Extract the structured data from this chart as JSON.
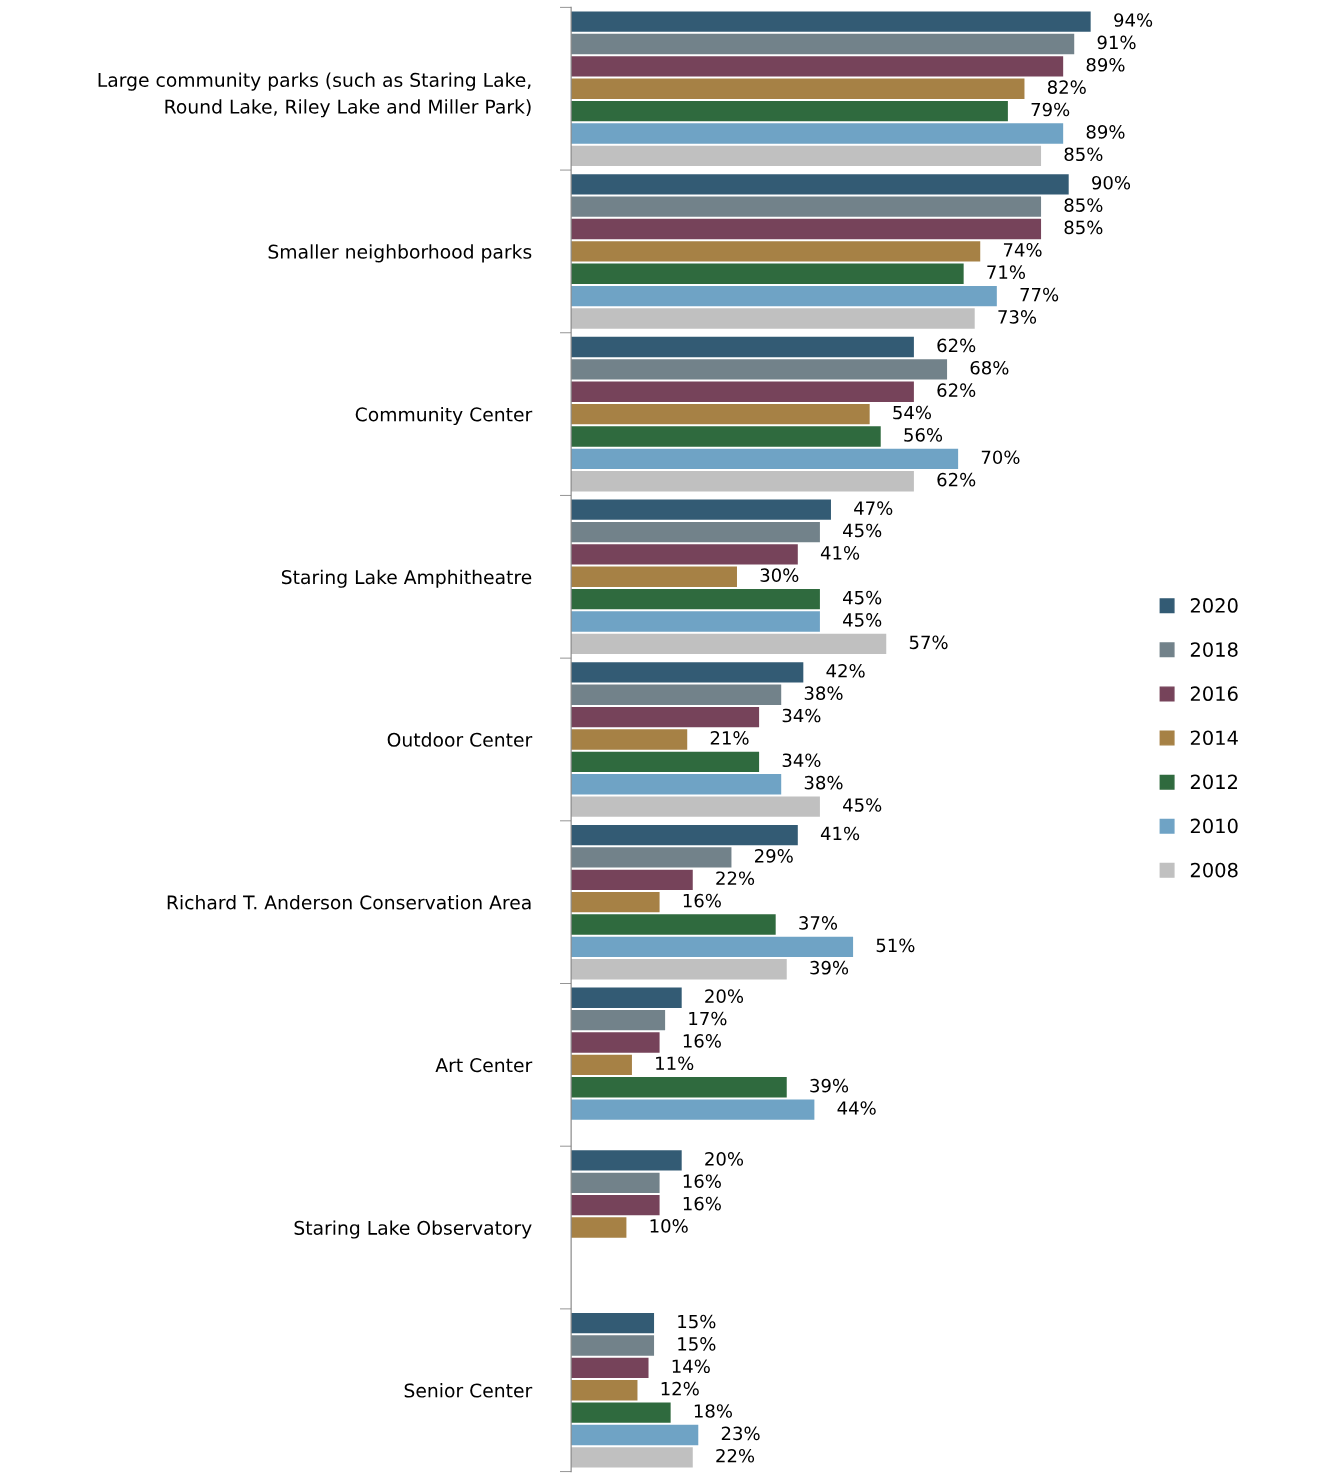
{
  "chart_data": {
    "type": "bar",
    "orientation": "horizontal",
    "categories": [
      "Large community parks (such as Staring Lake,\nRound Lake, Riley Lake and Miller Park)",
      "Smaller neighborhood parks",
      "Community Center",
      "Staring Lake Amphitheatre",
      "Outdoor Center",
      "Richard T. Anderson Conservation Area",
      "Art Center",
      "Staring Lake Observatory",
      "Senior Center"
    ],
    "series": [
      {
        "name": "2020",
        "color": "#335b74",
        "values": [
          94,
          90,
          62,
          47,
          42,
          41,
          20,
          20,
          15
        ],
        "value_labels": [
          "94%",
          "90%",
          "62%",
          "47%",
          "42%",
          "41%",
          "20%",
          "20%",
          "15%"
        ]
      },
      {
        "name": "2018",
        "color": "#72828a",
        "values": [
          91,
          85,
          68,
          45,
          38,
          29,
          17,
          16,
          15
        ],
        "value_labels": [
          "91%",
          "85%",
          "68%",
          "45%",
          "38%",
          "29%",
          "17%",
          "16%",
          "15%"
        ]
      },
      {
        "name": "2016",
        "color": "#76435a",
        "values": [
          89,
          85,
          62,
          41,
          34,
          22,
          16,
          16,
          14
        ],
        "value_labels": [
          "89%",
          "85%",
          "62%",
          "41%",
          "34%",
          "22%",
          "16%",
          "16%",
          "14%"
        ]
      },
      {
        "name": "2014",
        "color": "#a68145",
        "values": [
          82,
          74,
          54,
          30,
          21,
          16,
          11,
          10,
          12
        ],
        "value_labels": [
          "82%",
          "74%",
          "54%",
          "30%",
          "21%",
          "16%",
          "11%",
          "10%",
          "12%"
        ]
      },
      {
        "name": "2012",
        "color": "#2f6a3e",
        "values": [
          79,
          71,
          56,
          45,
          34,
          37,
          39,
          null,
          18
        ],
        "value_labels": [
          "79%",
          "71%",
          "56%",
          "45%",
          "34%",
          "37%",
          "39%",
          null,
          "18%"
        ]
      },
      {
        "name": "2010",
        "color": "#6fa3c5",
        "values": [
          89,
          77,
          70,
          45,
          38,
          51,
          44,
          null,
          23
        ],
        "value_labels": [
          "89%",
          "77%",
          "70%",
          "45%",
          "38%",
          "51%",
          "44%",
          null,
          "23%"
        ]
      },
      {
        "name": "2008",
        "color": "#c0c0c0",
        "values": [
          85,
          73,
          62,
          57,
          45,
          39,
          null,
          null,
          22
        ],
        "value_labels": [
          "85%",
          "73%",
          "62%",
          "57%",
          "45%",
          "39%",
          null,
          null,
          "22%"
        ]
      }
    ],
    "tick_labels": "y",
    "legend": "right",
    "grid": false
  }
}
